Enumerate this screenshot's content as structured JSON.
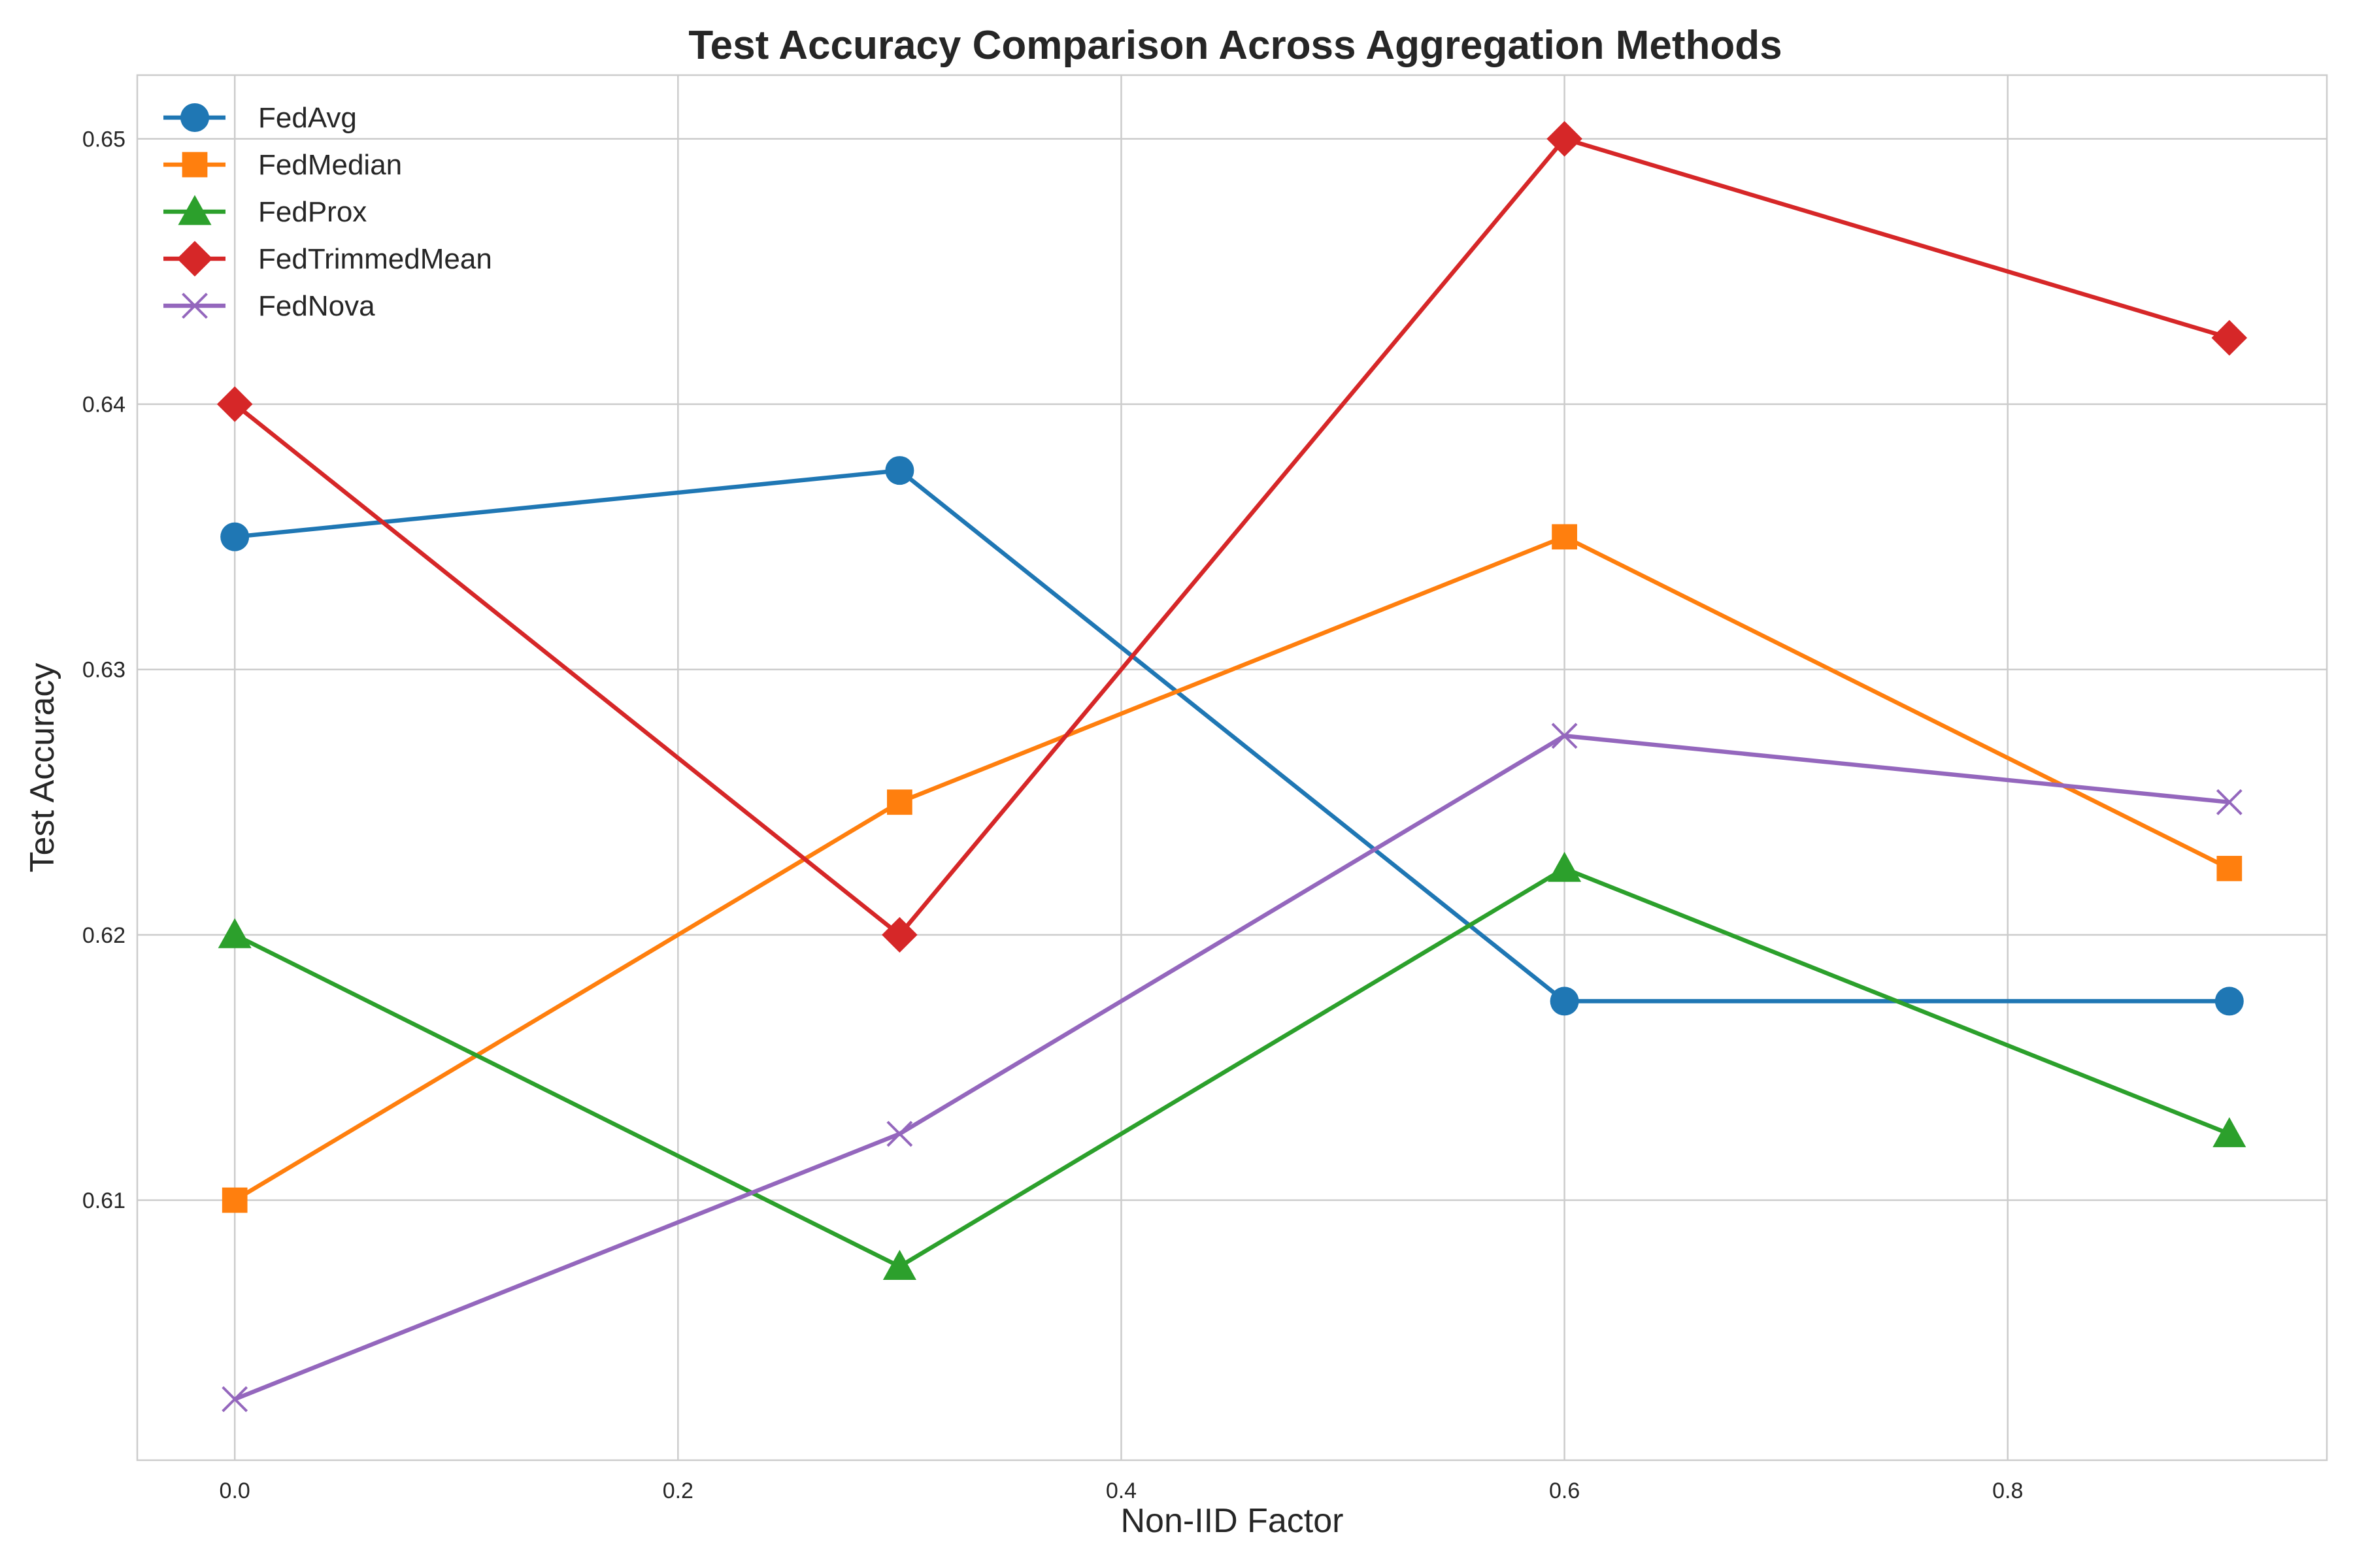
{
  "chart_data": {
    "type": "line",
    "title": "Test Accuracy Comparison Across Aggregation Methods",
    "xlabel": "Non-IID Factor",
    "ylabel": "Test Accuracy",
    "x": [
      0.0,
      0.3,
      0.6,
      0.9
    ],
    "xlim": [
      -0.044,
      0.944
    ],
    "ylim": [
      0.6002,
      0.6524
    ],
    "xticks": [
      0.0,
      0.2,
      0.4,
      0.6,
      0.8
    ],
    "xtick_labels": [
      "0.0",
      "0.2",
      "0.4",
      "0.6",
      "0.8"
    ],
    "yticks": [
      0.61,
      0.62,
      0.63,
      0.64,
      0.65
    ],
    "ytick_labels": [
      "0.61",
      "0.62",
      "0.63",
      "0.64",
      "0.65"
    ],
    "grid": true,
    "legend_position": "top-left",
    "series": [
      {
        "name": "FedAvg",
        "values": [
          0.635,
          0.6375,
          0.6175,
          0.6175
        ],
        "color": "#1f77b4",
        "marker": "circle"
      },
      {
        "name": "FedMedian",
        "values": [
          0.61,
          0.625,
          0.635,
          0.6225
        ],
        "color": "#ff7f0e",
        "marker": "square"
      },
      {
        "name": "FedProx",
        "values": [
          0.62,
          0.6075,
          0.6225,
          0.6125
        ],
        "color": "#2ca02c",
        "marker": "triangle"
      },
      {
        "name": "FedTrimmedMean",
        "values": [
          0.64,
          0.62,
          0.65,
          0.6425
        ],
        "color": "#d62728",
        "marker": "diamond"
      },
      {
        "name": "FedNova",
        "values": [
          0.6025,
          0.6125,
          0.6275,
          0.625
        ],
        "color": "#9467bd",
        "marker": "x"
      }
    ]
  }
}
